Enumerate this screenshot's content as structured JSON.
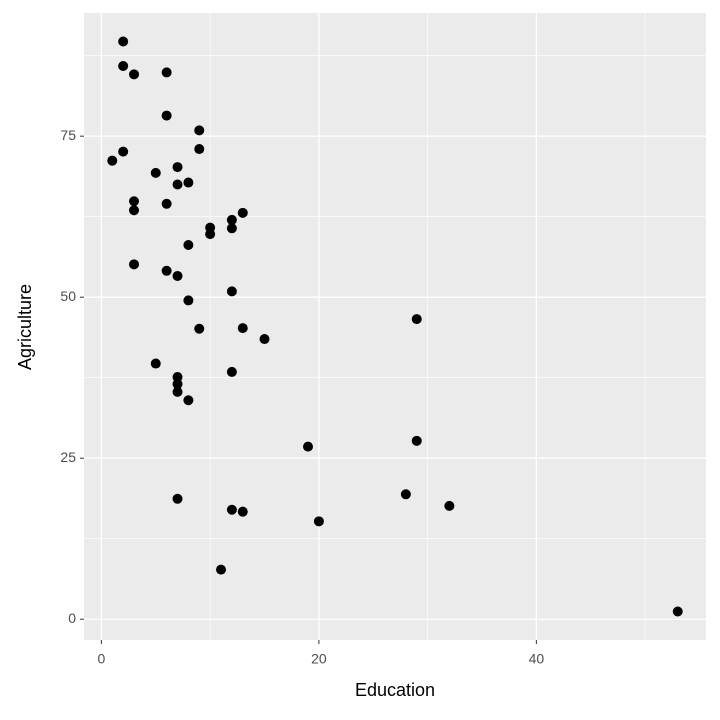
{
  "chart_data": {
    "type": "scatter",
    "x_label": "Education",
    "y_label": "Agriculture",
    "series": [
      {
        "color": "#000000",
        "x": [
          12,
          9,
          5,
          7,
          15,
          7,
          7,
          8,
          7,
          13,
          6,
          12,
          7,
          12,
          5,
          2,
          8,
          28,
          20,
          9,
          10,
          3,
          12,
          6,
          1,
          8,
          3,
          10,
          19,
          8,
          2,
          6,
          2,
          6,
          3,
          9,
          3,
          13,
          12,
          11,
          13,
          32,
          7,
          7,
          53,
          29,
          29
        ],
        "values": [
          17.0,
          45.1,
          39.7,
          36.5,
          43.5,
          35.3,
          70.2,
          67.8,
          53.3,
          45.2,
          64.5,
          62.0,
          67.5,
          60.7,
          69.3,
          72.6,
          34.0,
          19.4,
          15.2,
          73.0,
          59.8,
          55.1,
          50.9,
          54.1,
          71.2,
          58.1,
          63.5,
          60.8,
          26.8,
          49.5,
          85.9,
          84.9,
          89.7,
          78.2,
          64.9,
          75.9,
          84.6,
          63.1,
          38.4,
          7.7,
          16.7,
          17.6,
          37.6,
          18.7,
          1.2,
          46.6,
          27.7
        ]
      }
    ],
    "xlim": [
      -1.6,
      55.6
    ],
    "xticks": [
      0,
      20,
      40
    ],
    "x_minor_breaks": [
      10,
      30,
      50
    ],
    "ylim": [
      -3.225,
      94.125
    ],
    "yticks": [
      0,
      25,
      50,
      75
    ],
    "y_minor_breaks": [
      12.5,
      37.5,
      62.5,
      87.5
    ],
    "grid": true,
    "panel_color": "#ebebeb",
    "grid_color": "#ffffff"
  }
}
